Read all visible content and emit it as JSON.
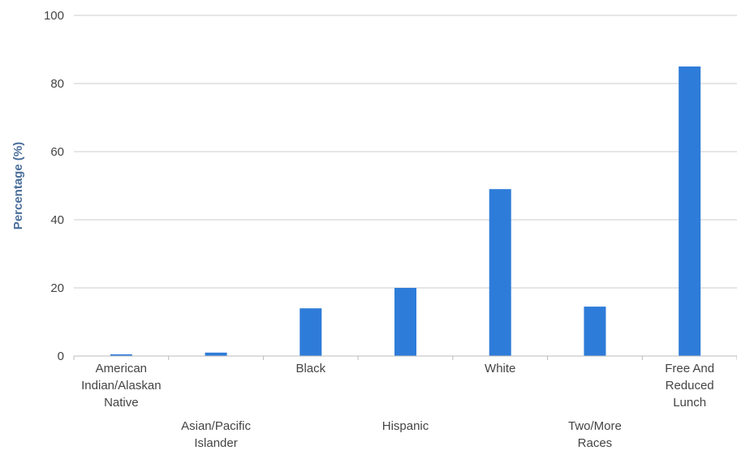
{
  "chart_data": {
    "type": "bar",
    "title": "",
    "xlabel": "",
    "ylabel": "Percentage (%)",
    "ylim": [
      0,
      100
    ],
    "yticks": [
      0,
      20,
      40,
      60,
      80,
      100
    ],
    "grid": true,
    "categories": [
      "American Indian/Alaskan Native",
      "Asian/Pacific Islander",
      "Black",
      "Hispanic",
      "White",
      "Two/More Races",
      "Free And Reduced Lunch"
    ],
    "category_label_lines": [
      [
        "American",
        "Indian/Alaskan",
        "Native"
      ],
      [
        "Asian/Pacific",
        "Islander"
      ],
      [
        "Black"
      ],
      [
        "Hispanic"
      ],
      [
        "White"
      ],
      [
        "Two/More",
        "Races"
      ],
      [
        "Free And",
        "Reduced",
        "Lunch"
      ]
    ],
    "values": [
      0.5,
      1,
      14,
      20,
      49,
      14.5,
      85
    ],
    "bar_color": "#2e7cd9",
    "axis_color": "#bbbbbb",
    "grid_color": "#cccccc"
  }
}
